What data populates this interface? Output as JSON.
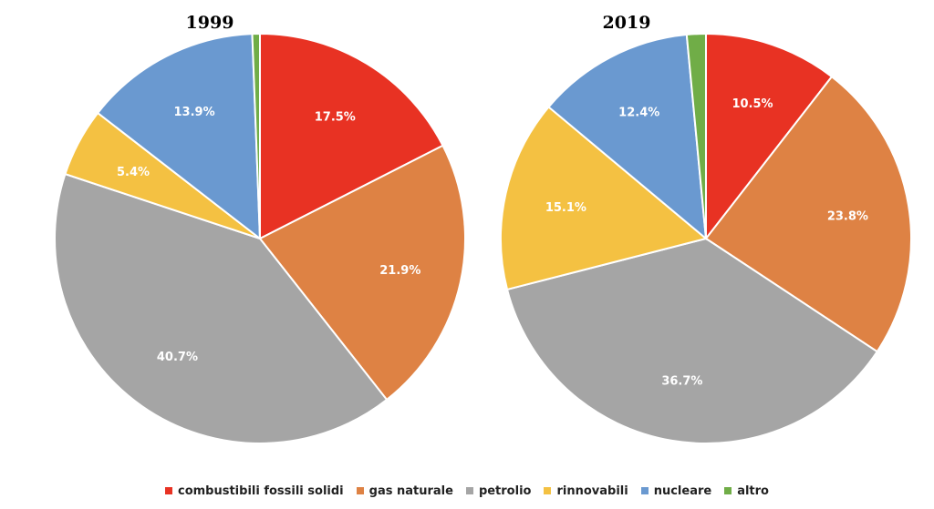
{
  "chart_data": [
    {
      "type": "pie",
      "title": "1999",
      "categories": [
        "combustibili fossili solidi",
        "gas naturale",
        "petrolio",
        "rinnovabili",
        "nucleare",
        "altro"
      ],
      "values": [
        17.5,
        21.9,
        40.7,
        5.4,
        13.9,
        0.6
      ],
      "labels": [
        "17.5%",
        "21.9%",
        "40.7%",
        "5.4%",
        "13.9%",
        ""
      ]
    },
    {
      "type": "pie",
      "title": "2019",
      "categories": [
        "combustibili fossili solidi",
        "gas naturale",
        "petrolio",
        "rinnovabili",
        "nucleare",
        "altro"
      ],
      "values": [
        10.5,
        23.8,
        36.7,
        15.1,
        12.4,
        1.5
      ],
      "labels": [
        "10.5%",
        "23.8%",
        "36.7%",
        "15.1%",
        "12.4%",
        ""
      ]
    }
  ],
  "legend": {
    "items": [
      {
        "label": "combustibili fossili solidi",
        "color": "#E83223"
      },
      {
        "label": "gas naturale",
        "color": "#DE8244"
      },
      {
        "label": "petrolio",
        "color": "#A5A5A5"
      },
      {
        "label": "rinnovabili",
        "color": "#F4C142"
      },
      {
        "label": "nucleare",
        "color": "#6A99D0"
      },
      {
        "label": "altro",
        "color": "#70AD47"
      }
    ]
  }
}
